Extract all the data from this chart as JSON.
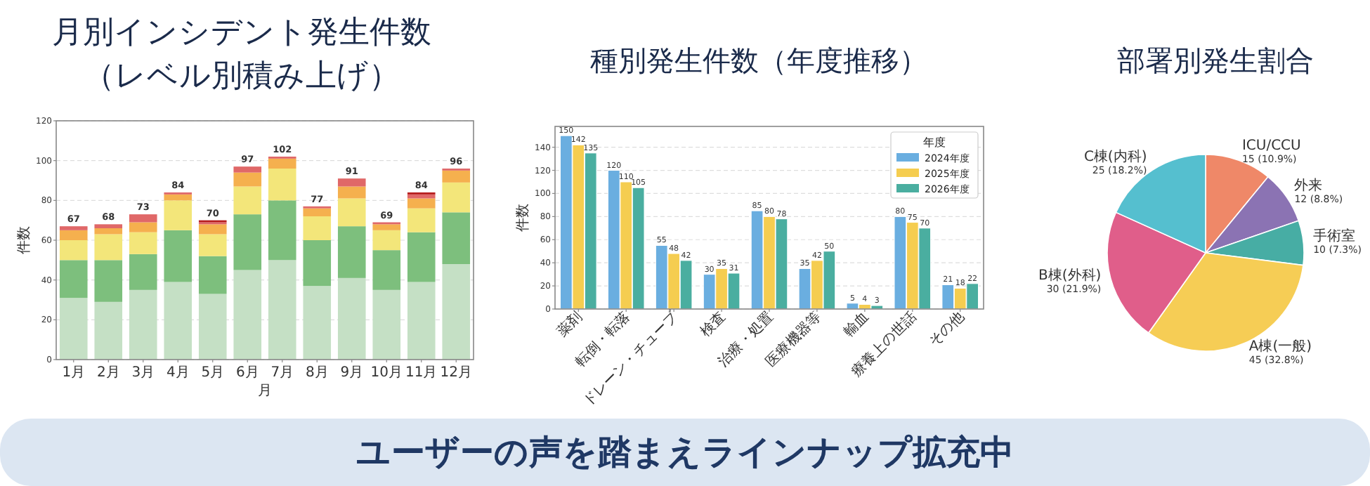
{
  "chart_data": [
    {
      "type": "bar",
      "title": "月別インシデント発生件数（レベル別積み上げ）",
      "xlabel": "月",
      "ylabel": "件数",
      "stacked": true,
      "grid": "y",
      "categories": [
        "1月",
        "2月",
        "3月",
        "4月",
        "5月",
        "6月",
        "7月",
        "8月",
        "9月",
        "10月",
        "11月",
        "12月"
      ],
      "series": [
        {
          "color": "#c5e0c5",
          "values": [
            31,
            29,
            35,
            39,
            33,
            45,
            50,
            37,
            41,
            35,
            39,
            48
          ]
        },
        {
          "color": "#7dbf7d",
          "values": [
            19,
            21,
            18,
            26,
            19,
            28,
            30,
            23,
            26,
            20,
            25,
            26
          ]
        },
        {
          "color": "#f3e67a",
          "values": [
            10,
            13,
            11,
            15,
            11,
            14,
            16,
            12,
            14,
            10,
            12,
            15
          ]
        },
        {
          "color": "#f5b04e",
          "values": [
            5,
            3,
            5,
            3,
            5,
            7,
            5,
            4,
            6,
            3,
            5,
            6
          ]
        },
        {
          "color": "#e06868",
          "values": [
            2,
            2,
            4,
            1,
            1,
            3,
            1,
            1,
            4,
            1,
            2,
            1
          ]
        },
        {
          "color": "#b71c1c",
          "values": [
            0,
            0,
            0,
            0,
            1,
            0,
            0,
            0,
            0,
            0,
            1,
            0
          ]
        }
      ],
      "totals": [
        "67",
        "68",
        "73",
        "84",
        "70",
        "97",
        "102",
        "77",
        "91",
        "69",
        "84",
        "96"
      ],
      "ylim": [
        0,
        120
      ],
      "yticks": [
        0,
        20,
        40,
        60,
        80,
        100,
        120
      ]
    },
    {
      "type": "bar",
      "title": "種別発生件数（年度推移）",
      "ylabel": "件数",
      "grid": "y",
      "legend": "top right",
      "legend_title": "年度",
      "data_labels": true,
      "categories": [
        "薬剤",
        "転倒・転落",
        "ドレーン・チューブ",
        "検査",
        "治療・処置",
        "医療機器等",
        "輸血",
        "療養上の世話",
        "その他"
      ],
      "series": [
        {
          "name": "2024年度",
          "color": "#6aaee0",
          "values": [
            150,
            120,
            55,
            30,
            85,
            35,
            5,
            80,
            21
          ]
        },
        {
          "name": "2025年度",
          "color": "#f5cd50",
          "values": [
            142,
            110,
            48,
            35,
            80,
            42,
            4,
            75,
            18
          ]
        },
        {
          "name": "2026年度",
          "color": "#4aaea0",
          "values": [
            135,
            105,
            42,
            31,
            78,
            50,
            3,
            70,
            22
          ]
        }
      ],
      "ylim": [
        0,
        158
      ],
      "yticks": [
        0,
        20,
        40,
        60,
        80,
        100,
        120,
        140
      ]
    },
    {
      "type": "pie",
      "title": "部署別発生割合",
      "categories": [
        "ICU/CCU",
        "外来",
        "手術室",
        "A棟(一般)",
        "B棟(外科)",
        "C棟(内科)"
      ],
      "values": [
        15,
        12,
        10,
        45,
        30,
        25
      ],
      "value_labels": [
        "15 (10.9%)",
        "12 (8.8%)",
        "10 (7.3%)",
        "45 (32.8%)",
        "30 (21.9%)",
        "25 (18.2%)"
      ],
      "colors": [
        "#ef8868",
        "#8b73b3",
        "#47ada4",
        "#f6cd55",
        "#e05e8a",
        "#55bfcf"
      ]
    },
    {
      "type": "other",
      "title": "ユーザーの声を踏まえラインナップ拡充中"
    }
  ]
}
